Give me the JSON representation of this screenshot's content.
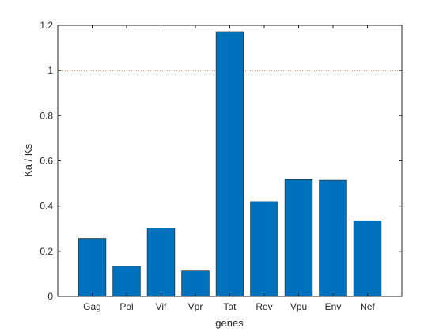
{
  "chart_data": {
    "type": "bar",
    "categories": [
      "Gag",
      "Pol",
      "Vif",
      "Vpr",
      "Tat",
      "Rev",
      "Vpu",
      "Env",
      "Nef"
    ],
    "values": [
      0.257,
      0.135,
      0.302,
      0.113,
      1.172,
      0.42,
      0.517,
      0.514,
      0.335
    ],
    "xlabel": "genes",
    "ylabel": "Ka / Ks",
    "ylim": [
      0,
      1.2
    ],
    "yticks": [
      0,
      0.2,
      0.4,
      0.6,
      0.8,
      1,
      1.2
    ],
    "ytick_labels": [
      "0",
      "0.2",
      "0.4",
      "0.6",
      "0.8",
      "1",
      "1.2"
    ],
    "reference_line": {
      "y": 1,
      "style": "dotted",
      "color": "#d95319"
    },
    "bar_color": "#0072bd",
    "grid": false,
    "legend": "none"
  }
}
